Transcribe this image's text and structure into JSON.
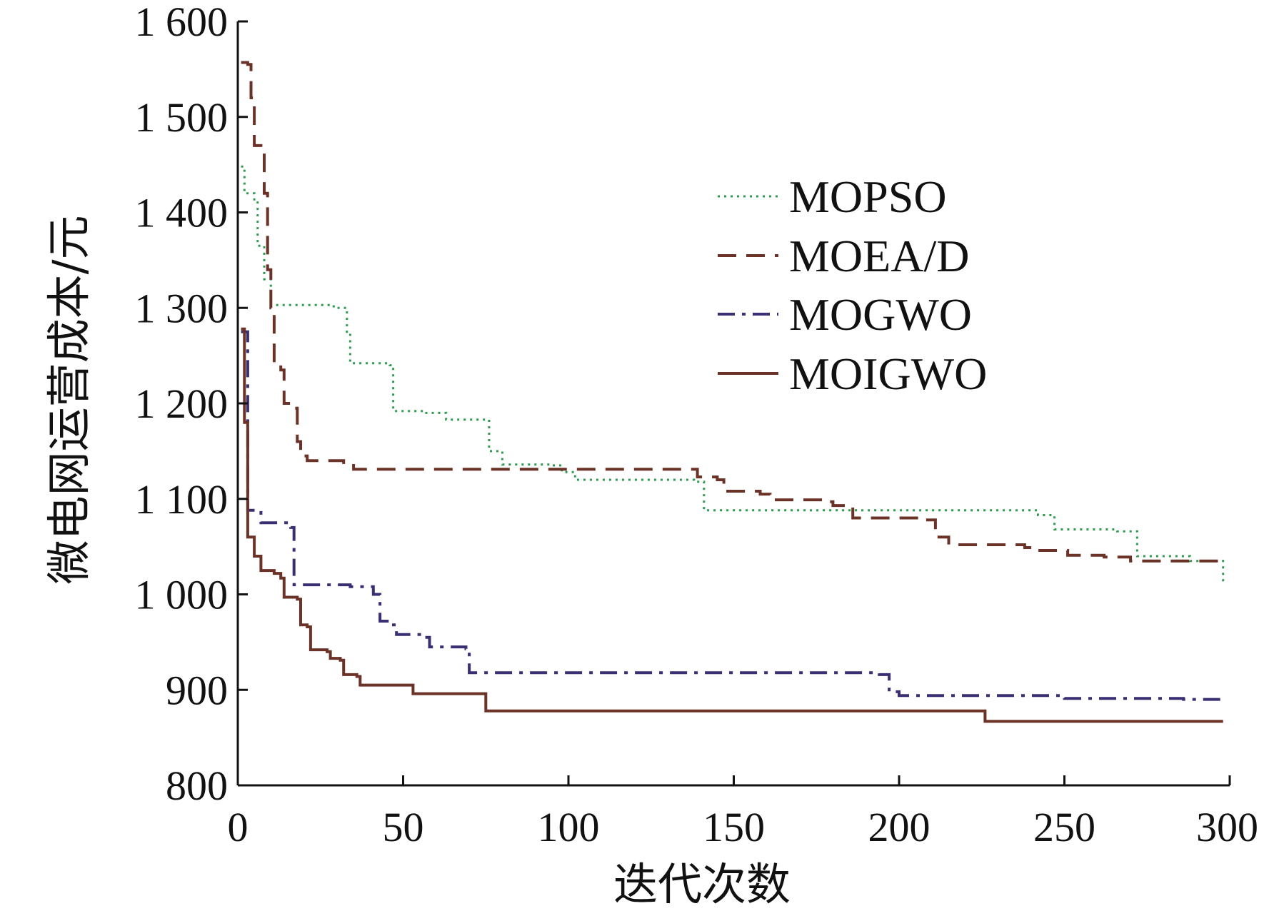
{
  "chart_data": {
    "type": "line",
    "title": "",
    "xlabel": "迭代次数",
    "ylabel": "微电网运营成本/元",
    "xlim": [
      0,
      300
    ],
    "ylim": [
      800,
      1600
    ],
    "xticks": [
      0,
      50,
      100,
      150,
      200,
      250,
      300
    ],
    "xtick_labels": [
      "0",
      "50",
      "100",
      "150",
      "200",
      "250",
      "300"
    ],
    "yticks": [
      800,
      900,
      1000,
      1100,
      1200,
      1300,
      1400,
      1500,
      1600
    ],
    "ytick_labels": [
      "800",
      "900",
      "1 000",
      "1 100",
      "1 200",
      "1 300",
      "1 400",
      "1 500",
      "1 600"
    ],
    "grid": false,
    "legend_position": "top-right",
    "series": [
      {
        "name": "MOPSO",
        "color": "#2e9a4e",
        "dash": "dotted",
        "points": [
          [
            1,
            1448
          ],
          [
            2,
            1420
          ],
          [
            5,
            1412
          ],
          [
            6,
            1365
          ],
          [
            8,
            1330
          ],
          [
            10,
            1303
          ],
          [
            29,
            1300
          ],
          [
            33,
            1275
          ],
          [
            34,
            1242
          ],
          [
            46,
            1240
          ],
          [
            47,
            1192
          ],
          [
            57,
            1190
          ],
          [
            63,
            1183
          ],
          [
            75,
            1183
          ],
          [
            76,
            1150
          ],
          [
            80,
            1136
          ],
          [
            95,
            1135
          ],
          [
            98,
            1128
          ],
          [
            102,
            1120
          ],
          [
            138,
            1118
          ],
          [
            141,
            1088
          ],
          [
            230,
            1088
          ],
          [
            242,
            1083
          ],
          [
            247,
            1068
          ],
          [
            266,
            1066
          ],
          [
            272,
            1040
          ],
          [
            288,
            1035
          ],
          [
            298,
            1013
          ]
        ]
      },
      {
        "name": "MOEA/D",
        "color": "#6b3228",
        "dash": "dashed",
        "points": [
          [
            1,
            1557
          ],
          [
            3,
            1555
          ],
          [
            4,
            1520
          ],
          [
            5,
            1470
          ],
          [
            7,
            1465
          ],
          [
            8,
            1420
          ],
          [
            9,
            1340
          ],
          [
            10,
            1300
          ],
          [
            11,
            1240
          ],
          [
            13,
            1235
          ],
          [
            14,
            1200
          ],
          [
            16,
            1195
          ],
          [
            18,
            1160
          ],
          [
            19,
            1145
          ],
          [
            21,
            1140
          ],
          [
            32,
            1138
          ],
          [
            35,
            1131
          ],
          [
            134,
            1131
          ],
          [
            139,
            1123
          ],
          [
            145,
            1120
          ],
          [
            147,
            1108
          ],
          [
            158,
            1105
          ],
          [
            161,
            1099
          ],
          [
            177,
            1097
          ],
          [
            180,
            1093
          ],
          [
            186,
            1080
          ],
          [
            208,
            1078
          ],
          [
            211,
            1060
          ],
          [
            215,
            1052
          ],
          [
            238,
            1049
          ],
          [
            242,
            1046
          ],
          [
            251,
            1041
          ],
          [
            262,
            1039
          ],
          [
            270,
            1035
          ],
          [
            298,
            1035
          ]
        ]
      },
      {
        "name": "MOGWO",
        "color": "#3a2f73",
        "dash": "dashdot",
        "points": [
          [
            1,
            1275
          ],
          [
            3,
            1088
          ],
          [
            7,
            1075
          ],
          [
            16,
            1070
          ],
          [
            17,
            1010
          ],
          [
            34,
            1008
          ],
          [
            41,
            1000
          ],
          [
            43,
            972
          ],
          [
            46,
            968
          ],
          [
            48,
            958
          ],
          [
            55,
            955
          ],
          [
            58,
            945
          ],
          [
            69,
            943
          ],
          [
            70,
            918
          ],
          [
            194,
            916
          ],
          [
            197,
            898
          ],
          [
            200,
            894
          ],
          [
            240,
            894
          ],
          [
            250,
            891
          ],
          [
            286,
            890
          ],
          [
            298,
            888
          ]
        ]
      },
      {
        "name": "MOIGWO",
        "color": "#6b3228",
        "dash": "solid",
        "points": [
          [
            1,
            1278
          ],
          [
            2,
            1180
          ],
          [
            3,
            1060
          ],
          [
            5,
            1040
          ],
          [
            7,
            1025
          ],
          [
            11,
            1022
          ],
          [
            13,
            1017
          ],
          [
            14,
            997
          ],
          [
            18,
            995
          ],
          [
            19,
            968
          ],
          [
            21,
            966
          ],
          [
            22,
            942
          ],
          [
            27,
            940
          ],
          [
            28,
            933
          ],
          [
            31,
            931
          ],
          [
            32,
            916
          ],
          [
            36,
            914
          ],
          [
            37,
            905
          ],
          [
            52,
            905
          ],
          [
            53,
            896
          ],
          [
            74,
            896
          ],
          [
            75,
            878
          ],
          [
            225,
            878
          ],
          [
            226,
            867
          ],
          [
            298,
            867
          ]
        ]
      }
    ]
  }
}
